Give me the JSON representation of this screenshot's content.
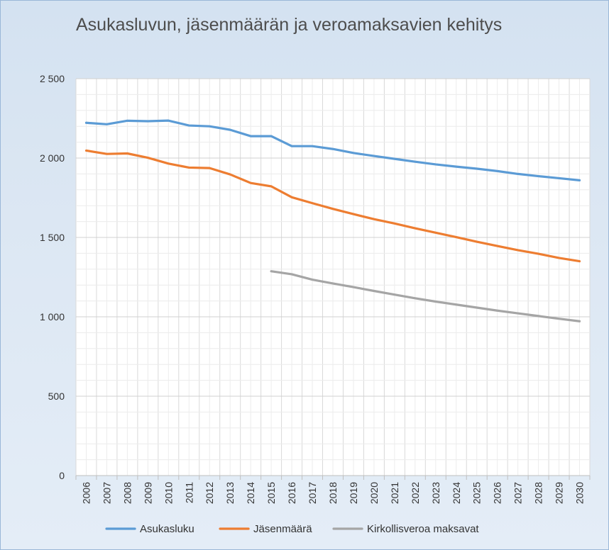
{
  "chart_data": {
    "type": "line",
    "title": "Asukasluvun, jäsenmäärän ja veroamaksavien kehitys",
    "xlabel": "",
    "ylabel": "",
    "ylim": [
      0,
      2500
    ],
    "y_ticks": [
      "0",
      "500",
      "1 000",
      "1 500",
      "2 000",
      "2 500"
    ],
    "y_tick_values": [
      0,
      500,
      1000,
      1500,
      2000,
      2500
    ],
    "grid": true,
    "legend_position": "bottom",
    "categories": [
      "2006",
      "2007",
      "2008",
      "2009",
      "2010",
      "2011",
      "2012",
      "2013",
      "2014",
      "2015",
      "2016",
      "2017",
      "2018",
      "2019",
      "2020",
      "2021",
      "2022",
      "2023",
      "2024",
      "2025",
      "2026",
      "2027",
      "2028",
      "2029",
      "2030"
    ],
    "series": [
      {
        "name": "Asukasluku",
        "color": "#5b9bd5",
        "values": [
          2222,
          2213,
          2235,
          2232,
          2236,
          2205,
          2200,
          2178,
          2138,
          2138,
          2075,
          2075,
          2057,
          2032,
          2013,
          1995,
          1977,
          1960,
          1946,
          1933,
          1918,
          1900,
          1886,
          1873,
          1860
        ]
      },
      {
        "name": "Jäsenmäärä",
        "color": "#ed7d31",
        "values": [
          2047,
          2026,
          2029,
          2002,
          1965,
          1940,
          1937,
          1897,
          1843,
          1822,
          1753,
          1716,
          1680,
          1647,
          1615,
          1588,
          1558,
          1530,
          1502,
          1473,
          1446,
          1420,
          1397,
          1371,
          1350
        ]
      },
      {
        "name": "Kirkollisveroa maksavat",
        "color": "#a5a5a5",
        "values": [
          null,
          null,
          null,
          null,
          null,
          null,
          null,
          null,
          null,
          1287,
          1268,
          1234,
          1210,
          1187,
          1163,
          1140,
          1117,
          1096,
          1077,
          1058,
          1039,
          1022,
          1005,
          988,
          972
        ]
      }
    ]
  }
}
